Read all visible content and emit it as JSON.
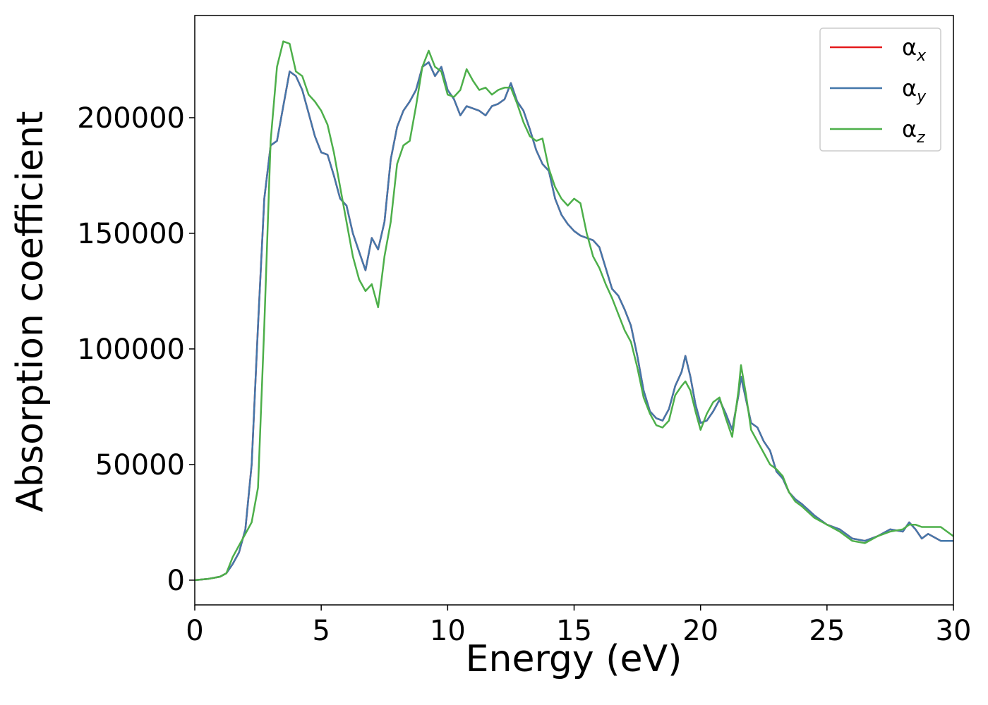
{
  "chart_data": {
    "type": "line",
    "x_label": "Energy (eV)",
    "y_label": "Absorption coefficient",
    "xlim": [
      0,
      30
    ],
    "xticks": [
      0,
      5,
      10,
      15,
      20,
      25,
      30
    ],
    "ylim": [
      -10700,
      244200
    ],
    "yticks": [
      0,
      50000,
      100000,
      150000,
      200000
    ],
    "legend": "upper right",
    "x": [
      0,
      0.5,
      1,
      1.25,
      1.5,
      1.75,
      2,
      2.25,
      2.5,
      2.75,
      3,
      3.25,
      3.5,
      3.75,
      4,
      4.25,
      4.5,
      4.75,
      5,
      5.25,
      5.5,
      5.75,
      6,
      6.25,
      6.5,
      6.75,
      7,
      7.25,
      7.5,
      7.75,
      8,
      8.25,
      8.5,
      8.75,
      9,
      9.25,
      9.5,
      9.75,
      10,
      10.25,
      10.5,
      10.75,
      11,
      11.25,
      11.5,
      11.75,
      12,
      12.25,
      12.5,
      12.75,
      13,
      13.25,
      13.5,
      13.75,
      14,
      14.25,
      14.5,
      14.75,
      15,
      15.25,
      15.5,
      15.75,
      16,
      16.25,
      16.5,
      16.75,
      17,
      17.25,
      17.5,
      17.75,
      18,
      18.25,
      18.5,
      18.75,
      19,
      19.25,
      19.4,
      19.6,
      19.8,
      20,
      20.25,
      20.5,
      20.75,
      21,
      21.25,
      21.5,
      21.6,
      21.8,
      22,
      22.25,
      22.5,
      22.75,
      23,
      23.25,
      23.5,
      23.75,
      24,
      24.5,
      25,
      25.5,
      26,
      26.5,
      27,
      27.5,
      28,
      28.25,
      28.5,
      28.75,
      29,
      29.5,
      30
    ],
    "series": [
      {
        "name": "αx",
        "color": "#e41a1c",
        "values": [
          0,
          500,
          1500,
          3000,
          7000,
          12000,
          22000,
          50000,
          110000,
          165000,
          188000,
          190000,
          205000,
          220000,
          218000,
          212000,
          202000,
          192000,
          185000,
          184000,
          175000,
          165000,
          162000,
          150000,
          142000,
          134000,
          148000,
          143000,
          155000,
          182000,
          196000,
          203000,
          207000,
          212000,
          222000,
          224000,
          218000,
          222000,
          212000,
          208000,
          201000,
          205000,
          204000,
          203000,
          201000,
          205000,
          206000,
          208000,
          215000,
          207000,
          203000,
          195000,
          186000,
          180000,
          177000,
          165000,
          158000,
          154000,
          151000,
          149000,
          148000,
          147000,
          144000,
          135000,
          126000,
          123000,
          117000,
          110000,
          97000,
          82000,
          73000,
          70000,
          69000,
          74000,
          84000,
          90000,
          97000,
          88000,
          76000,
          68000,
          69000,
          73000,
          78000,
          72000,
          65000,
          80000,
          88000,
          78000,
          68000,
          66000,
          60000,
          56000,
          47000,
          44000,
          38000,
          35000,
          33000,
          28000,
          24000,
          22000,
          18000,
          17000,
          19000,
          22000,
          21000,
          25000,
          22000,
          18000,
          20000,
          17000,
          17000
        ]
      },
      {
        "name": "αy",
        "color": "#4477aa",
        "values": [
          0,
          500,
          1500,
          3000,
          7000,
          12000,
          22000,
          50000,
          110000,
          165000,
          188000,
          190000,
          205000,
          220000,
          218000,
          212000,
          202000,
          192000,
          185000,
          184000,
          175000,
          165000,
          162000,
          150000,
          142000,
          134000,
          148000,
          143000,
          155000,
          182000,
          196000,
          203000,
          207000,
          212000,
          222000,
          224000,
          218000,
          222000,
          212000,
          208000,
          201000,
          205000,
          204000,
          203000,
          201000,
          205000,
          206000,
          208000,
          215000,
          207000,
          203000,
          195000,
          186000,
          180000,
          177000,
          165000,
          158000,
          154000,
          151000,
          149000,
          148000,
          147000,
          144000,
          135000,
          126000,
          123000,
          117000,
          110000,
          97000,
          82000,
          73000,
          70000,
          69000,
          74000,
          84000,
          90000,
          97000,
          88000,
          76000,
          68000,
          69000,
          73000,
          78000,
          72000,
          65000,
          80000,
          88000,
          78000,
          68000,
          66000,
          60000,
          56000,
          47000,
          44000,
          38000,
          35000,
          33000,
          28000,
          24000,
          22000,
          18000,
          17000,
          19000,
          22000,
          21000,
          25000,
          22000,
          18000,
          20000,
          17000,
          17000
        ]
      },
      {
        "name": "αz",
        "color": "#4daf4a",
        "values": [
          0,
          500,
          1500,
          3000,
          10000,
          15000,
          20000,
          25000,
          40000,
          110000,
          190000,
          222000,
          233000,
          232000,
          220000,
          218000,
          210000,
          207000,
          203000,
          197000,
          185000,
          170000,
          155000,
          140000,
          130000,
          125000,
          128000,
          118000,
          140000,
          155000,
          180000,
          188000,
          190000,
          205000,
          222000,
          229000,
          222000,
          220000,
          210000,
          209000,
          212000,
          221000,
          216000,
          212000,
          213000,
          210000,
          212000,
          213000,
          213000,
          206000,
          198000,
          192000,
          190000,
          191000,
          178000,
          170000,
          165000,
          162000,
          165000,
          163000,
          150000,
          140000,
          135000,
          128000,
          122000,
          115000,
          108000,
          103000,
          92000,
          79000,
          72000,
          67000,
          66000,
          69000,
          80000,
          84000,
          86000,
          82000,
          73000,
          65000,
          72000,
          77000,
          79000,
          70000,
          62000,
          82000,
          93000,
          80000,
          65000,
          60000,
          55000,
          50000,
          48000,
          45000,
          38000,
          34000,
          32000,
          27000,
          24000,
          21000,
          17000,
          16000,
          19000,
          21000,
          22000,
          24000,
          24000,
          23000,
          23000,
          23000,
          19000
        ]
      }
    ]
  }
}
